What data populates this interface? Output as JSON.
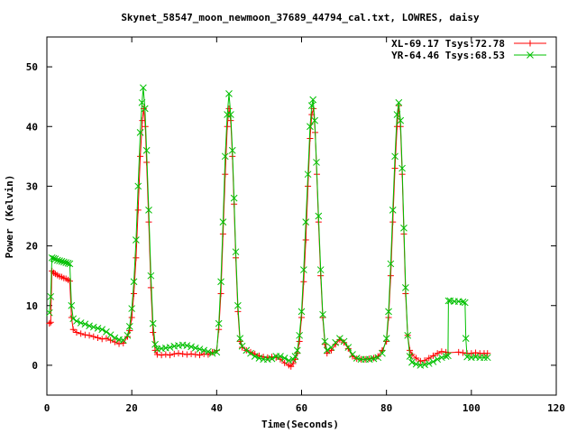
{
  "chart_data": {
    "type": "line",
    "title": "Skynet_58547_moon_newmoon_37689_44794_cal.txt, LOWRES, daisy",
    "xlabel": "Time(Seconds)",
    "ylabel": "Power (Kelvin)",
    "xlim": [
      0,
      120
    ],
    "ylim": [
      -5,
      55
    ],
    "xticks": [
      0,
      20,
      40,
      60,
      80,
      100,
      120
    ],
    "yticks": [
      0,
      10,
      20,
      30,
      40,
      50
    ],
    "grid": false,
    "legend_position": "top-right",
    "series": [
      {
        "name": "XL-69.17 Tsys:72.78",
        "color": "#ff0000",
        "marker": "plus",
        "points": [
          [
            0.6,
            7.0
          ],
          [
            0.9,
            7.2
          ],
          [
            1.2,
            15.8
          ],
          [
            1.6,
            15.5
          ],
          [
            2.0,
            15.3
          ],
          [
            2.5,
            15.1
          ],
          [
            3.0,
            14.9
          ],
          [
            3.5,
            14.8
          ],
          [
            4.0,
            14.6
          ],
          [
            4.5,
            14.5
          ],
          [
            5.0,
            14.3
          ],
          [
            5.4,
            14.1
          ],
          [
            5.8,
            8.0
          ],
          [
            6.2,
            6.0
          ],
          [
            7.0,
            5.5
          ],
          [
            8.0,
            5.3
          ],
          [
            9.0,
            5.1
          ],
          [
            10.0,
            5.0
          ],
          [
            11.0,
            4.8
          ],
          [
            12.0,
            4.6
          ],
          [
            13.0,
            4.4
          ],
          [
            14.0,
            4.5
          ],
          [
            15.0,
            4.2
          ],
          [
            16.0,
            3.9
          ],
          [
            17.0,
            3.6
          ],
          [
            18.0,
            3.7
          ],
          [
            19.0,
            4.8
          ],
          [
            19.5,
            5.8
          ],
          [
            20.0,
            8.0
          ],
          [
            20.5,
            12.0
          ],
          [
            21.0,
            18.0
          ],
          [
            21.5,
            26.0
          ],
          [
            22.0,
            35.0
          ],
          [
            22.5,
            41.0
          ],
          [
            22.8,
            43.0
          ],
          [
            23.2,
            40.0
          ],
          [
            23.5,
            34.0
          ],
          [
            24.0,
            24.0
          ],
          [
            24.5,
            13.0
          ],
          [
            25.0,
            5.5
          ],
          [
            25.5,
            2.5
          ],
          [
            26.0,
            1.8
          ],
          [
            27.0,
            1.7
          ],
          [
            28.0,
            1.8
          ],
          [
            29.0,
            1.7
          ],
          [
            30.0,
            1.9
          ],
          [
            31.0,
            2.0
          ],
          [
            32.0,
            1.9
          ],
          [
            33.0,
            1.8
          ],
          [
            34.0,
            1.9
          ],
          [
            35.0,
            1.8
          ],
          [
            36.0,
            1.7
          ],
          [
            37.0,
            1.9
          ],
          [
            38.0,
            1.8
          ],
          [
            39.0,
            2.2
          ],
          [
            40.0,
            2.5
          ],
          [
            40.5,
            6.0
          ],
          [
            41.0,
            12.0
          ],
          [
            41.5,
            22.0
          ],
          [
            42.0,
            32.0
          ],
          [
            42.5,
            40.0
          ],
          [
            42.9,
            43.0
          ],
          [
            43.3,
            41.0
          ],
          [
            43.7,
            35.0
          ],
          [
            44.1,
            27.0
          ],
          [
            44.5,
            18.0
          ],
          [
            45.0,
            9.0
          ],
          [
            45.5,
            4.0
          ],
          [
            46.0,
            3.0
          ],
          [
            47.0,
            2.5
          ],
          [
            48.0,
            2.2
          ],
          [
            49.0,
            1.9
          ],
          [
            50.0,
            1.6
          ],
          [
            51.0,
            1.4
          ],
          [
            52.0,
            1.3
          ],
          [
            53.0,
            1.4
          ],
          [
            54.0,
            1.3
          ],
          [
            55.0,
            1.0
          ],
          [
            56.0,
            0.4
          ],
          [
            57.0,
            0.0
          ],
          [
            57.5,
            -0.2
          ],
          [
            58.0,
            0.3
          ],
          [
            58.5,
            1.0
          ],
          [
            59.0,
            2.0
          ],
          [
            59.5,
            4.0
          ],
          [
            60.0,
            8.0
          ],
          [
            60.5,
            14.0
          ],
          [
            61.0,
            21.0
          ],
          [
            61.5,
            30.0
          ],
          [
            62.0,
            38.0
          ],
          [
            62.4,
            42.0
          ],
          [
            62.8,
            43.0
          ],
          [
            63.2,
            39.0
          ],
          [
            63.6,
            32.0
          ],
          [
            64.0,
            24.0
          ],
          [
            64.5,
            15.0
          ],
          [
            65.0,
            8.0
          ],
          [
            65.5,
            3.5
          ],
          [
            66.0,
            2.0
          ],
          [
            67.0,
            2.5
          ],
          [
            68.0,
            3.5
          ],
          [
            69.0,
            4.3
          ],
          [
            70.0,
            3.8
          ],
          [
            71.0,
            2.8
          ],
          [
            72.0,
            1.5
          ],
          [
            73.0,
            1.1
          ],
          [
            74.0,
            1.0
          ],
          [
            75.0,
            1.0
          ],
          [
            76.0,
            1.1
          ],
          [
            77.0,
            1.2
          ],
          [
            78.0,
            1.5
          ],
          [
            79.0,
            2.5
          ],
          [
            80.0,
            4.0
          ],
          [
            80.5,
            8.0
          ],
          [
            81.0,
            15.0
          ],
          [
            81.5,
            24.0
          ],
          [
            82.0,
            33.0
          ],
          [
            82.5,
            40.0
          ],
          [
            82.9,
            43.5
          ],
          [
            83.3,
            40.0
          ],
          [
            83.7,
            32.0
          ],
          [
            84.1,
            22.0
          ],
          [
            84.5,
            12.0
          ],
          [
            85.0,
            5.0
          ],
          [
            85.5,
            2.5
          ],
          [
            86.0,
            1.8
          ],
          [
            87.0,
            1.2
          ],
          [
            88.0,
            0.7
          ],
          [
            89.0,
            0.8
          ],
          [
            90.0,
            1.2
          ],
          [
            91.0,
            1.6
          ],
          [
            92.0,
            2.0
          ],
          [
            93.0,
            2.3
          ],
          [
            94.0,
            2.2
          ],
          [
            94.5,
            2.1
          ],
          [
            97.0,
            2.2
          ],
          [
            98.0,
            2.1
          ],
          [
            99.0,
            2.0
          ],
          [
            100.0,
            2.0
          ],
          [
            101.0,
            2.1
          ],
          [
            102.0,
            2.0
          ],
          [
            103.0,
            2.0
          ],
          [
            103.8,
            2.0
          ]
        ]
      },
      {
        "name": "YR-64.46 Tsys:68.53",
        "color": "#00c000",
        "marker": "x",
        "points": [
          [
            0.6,
            8.8
          ],
          [
            0.9,
            11.5
          ],
          [
            1.2,
            18.0
          ],
          [
            1.6,
            17.9
          ],
          [
            2.0,
            17.8
          ],
          [
            2.5,
            17.6
          ],
          [
            3.0,
            17.5
          ],
          [
            3.5,
            17.4
          ],
          [
            4.0,
            17.3
          ],
          [
            4.5,
            17.2
          ],
          [
            5.0,
            17.1
          ],
          [
            5.4,
            17.0
          ],
          [
            5.8,
            10.0
          ],
          [
            6.2,
            7.8
          ],
          [
            7.0,
            7.4
          ],
          [
            8.0,
            7.1
          ],
          [
            9.0,
            6.9
          ],
          [
            10.0,
            6.6
          ],
          [
            11.0,
            6.4
          ],
          [
            12.0,
            6.2
          ],
          [
            13.0,
            6.0
          ],
          [
            14.0,
            5.6
          ],
          [
            15.0,
            5.1
          ],
          [
            16.0,
            4.6
          ],
          [
            17.0,
            4.3
          ],
          [
            18.0,
            4.2
          ],
          [
            19.0,
            5.0
          ],
          [
            19.5,
            6.5
          ],
          [
            20.0,
            9.5
          ],
          [
            20.5,
            14.0
          ],
          [
            21.0,
            21.0
          ],
          [
            21.5,
            30.0
          ],
          [
            22.0,
            39.0
          ],
          [
            22.4,
            44.0
          ],
          [
            22.7,
            46.5
          ],
          [
            23.1,
            43.0
          ],
          [
            23.5,
            36.0
          ],
          [
            24.0,
            26.0
          ],
          [
            24.5,
            15.0
          ],
          [
            25.0,
            7.0
          ],
          [
            25.5,
            3.5
          ],
          [
            26.0,
            2.7
          ],
          [
            27.0,
            2.8
          ],
          [
            28.0,
            2.9
          ],
          [
            29.0,
            3.0
          ],
          [
            30.0,
            3.2
          ],
          [
            31.0,
            3.3
          ],
          [
            32.0,
            3.4
          ],
          [
            33.0,
            3.3
          ],
          [
            34.0,
            3.1
          ],
          [
            35.0,
            2.9
          ],
          [
            36.0,
            2.7
          ],
          [
            37.0,
            2.5
          ],
          [
            38.0,
            2.3
          ],
          [
            39.0,
            2.0
          ],
          [
            40.0,
            2.2
          ],
          [
            40.5,
            7.0
          ],
          [
            41.0,
            14.0
          ],
          [
            41.5,
            24.0
          ],
          [
            42.0,
            35.0
          ],
          [
            42.5,
            42.0
          ],
          [
            42.9,
            45.5
          ],
          [
            43.3,
            42.0
          ],
          [
            43.7,
            36.0
          ],
          [
            44.1,
            28.0
          ],
          [
            44.5,
            19.0
          ],
          [
            45.0,
            10.0
          ],
          [
            45.5,
            4.5
          ],
          [
            46.0,
            3.2
          ],
          [
            47.0,
            2.5
          ],
          [
            48.0,
            2.0
          ],
          [
            49.0,
            1.5
          ],
          [
            50.0,
            1.2
          ],
          [
            51.0,
            1.0
          ],
          [
            52.0,
            1.0
          ],
          [
            53.0,
            1.1
          ],
          [
            54.0,
            1.5
          ],
          [
            55.0,
            1.5
          ],
          [
            56.0,
            1.2
          ],
          [
            57.0,
            0.8
          ],
          [
            58.0,
            1.0
          ],
          [
            58.5,
            1.5
          ],
          [
            59.0,
            2.5
          ],
          [
            59.5,
            5.0
          ],
          [
            60.0,
            9.0
          ],
          [
            60.5,
            16.0
          ],
          [
            61.0,
            24.0
          ],
          [
            61.5,
            32.0
          ],
          [
            62.0,
            40.0
          ],
          [
            62.4,
            43.5
          ],
          [
            62.7,
            44.5
          ],
          [
            63.1,
            41.0
          ],
          [
            63.5,
            34.0
          ],
          [
            64.0,
            25.0
          ],
          [
            64.5,
            16.0
          ],
          [
            65.0,
            8.5
          ],
          [
            65.5,
            4.0
          ],
          [
            66.0,
            2.5
          ],
          [
            67.0,
            3.0
          ],
          [
            68.0,
            3.8
          ],
          [
            69.0,
            4.5
          ],
          [
            70.0,
            4.0
          ],
          [
            71.0,
            3.0
          ],
          [
            72.0,
            1.8
          ],
          [
            73.0,
            1.2
          ],
          [
            74.0,
            1.0
          ],
          [
            75.0,
            1.0
          ],
          [
            76.0,
            1.0
          ],
          [
            77.0,
            1.1
          ],
          [
            78.0,
            1.3
          ],
          [
            79.0,
            2.0
          ],
          [
            80.0,
            4.5
          ],
          [
            80.5,
            9.0
          ],
          [
            81.0,
            17.0
          ],
          [
            81.5,
            26.0
          ],
          [
            82.0,
            35.0
          ],
          [
            82.5,
            42.0
          ],
          [
            82.9,
            44.0
          ],
          [
            83.3,
            41.0
          ],
          [
            83.7,
            33.0
          ],
          [
            84.1,
            23.0
          ],
          [
            84.5,
            13.0
          ],
          [
            85.0,
            5.0
          ],
          [
            85.5,
            1.5
          ],
          [
            86.0,
            0.5
          ],
          [
            87.0,
            0.2
          ],
          [
            88.0,
            0.0
          ],
          [
            89.0,
            0.1
          ],
          [
            90.0,
            0.3
          ],
          [
            91.0,
            0.6
          ],
          [
            92.0,
            1.0
          ],
          [
            93.0,
            1.3
          ],
          [
            94.0,
            1.5
          ],
          [
            94.5,
            1.6
          ],
          [
            94.6,
            10.8
          ],
          [
            95.0,
            10.8
          ],
          [
            96.0,
            10.7
          ],
          [
            97.0,
            10.7
          ],
          [
            98.0,
            10.6
          ],
          [
            98.5,
            10.5
          ],
          [
            98.7,
            4.5
          ],
          [
            99.0,
            1.4
          ],
          [
            100.0,
            1.3
          ],
          [
            101.0,
            1.4
          ],
          [
            102.0,
            1.3
          ],
          [
            103.0,
            1.3
          ],
          [
            103.8,
            1.3
          ]
        ]
      }
    ]
  }
}
